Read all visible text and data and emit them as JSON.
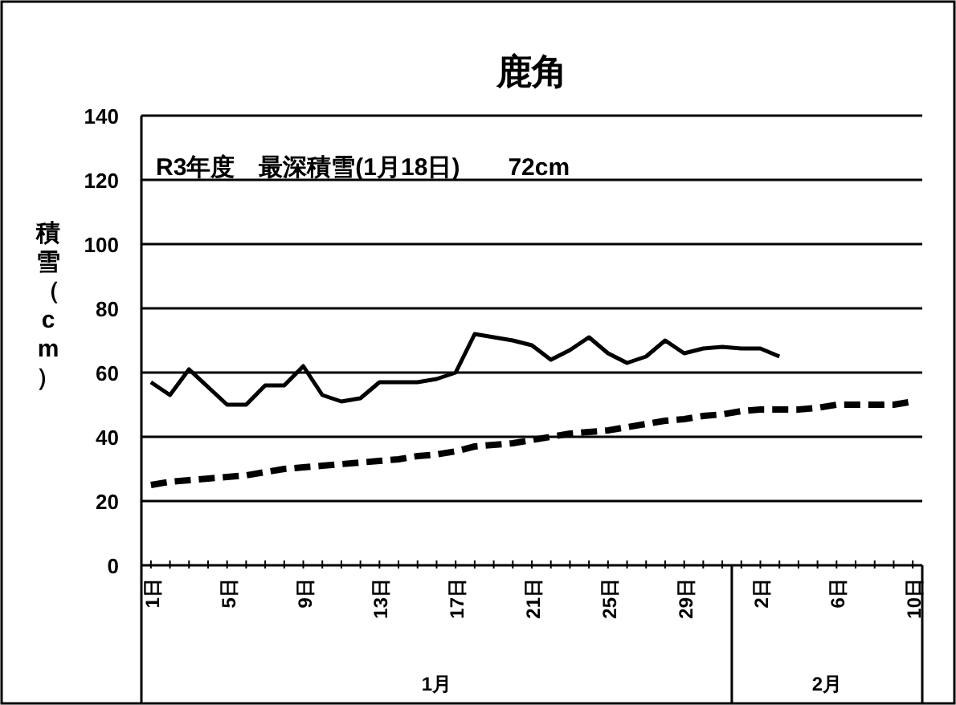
{
  "chart_data": {
    "type": "line",
    "title": "鹿角",
    "ylabel": "積雪（cm）",
    "annotations": [
      "R3年度　最深積雪(1月18日)　　72cm",
      "1月",
      "2月"
    ],
    "categories": [
      "1日",
      null,
      null,
      null,
      "5日",
      null,
      null,
      null,
      "9日",
      null,
      null,
      null,
      "13日",
      null,
      null,
      null,
      "17日",
      null,
      null,
      null,
      "21日",
      null,
      null,
      null,
      "25日",
      null,
      null,
      null,
      "29日",
      null,
      null,
      null,
      "2日",
      null,
      null,
      null,
      "6日",
      null,
      null,
      null,
      "10日"
    ],
    "series": [
      {
        "color": "#000000",
        "line_style": "solid",
        "values": [
          57,
          53,
          61,
          55.5,
          50,
          50,
          56,
          56,
          62,
          53,
          51,
          52,
          57,
          57,
          57,
          58,
          60,
          72,
          71,
          70,
          68.5,
          64,
          67,
          71,
          66,
          63,
          65,
          70,
          66,
          67.5,
          68,
          67.5,
          67.5,
          65,
          null,
          null,
          null,
          null,
          null,
          null,
          null
        ]
      },
      {
        "color": "#000000",
        "line_style": "dashed",
        "values": [
          25,
          26,
          26.5,
          27,
          27.5,
          28,
          29,
          30,
          30.5,
          31,
          31.5,
          32,
          32.5,
          33,
          34,
          34.5,
          35.5,
          37,
          37.5,
          38,
          39,
          40,
          41,
          41.5,
          42,
          43,
          44,
          45,
          45.5,
          46.5,
          47,
          48,
          48.5,
          48.5,
          48.5,
          49,
          50,
          50,
          50,
          50,
          51
        ]
      }
    ],
    "ylim": [
      0,
      140
    ],
    "yticks": [
      0,
      20,
      40,
      60,
      80,
      100,
      120,
      140
    ],
    "grid": "y",
    "marker": "none"
  }
}
